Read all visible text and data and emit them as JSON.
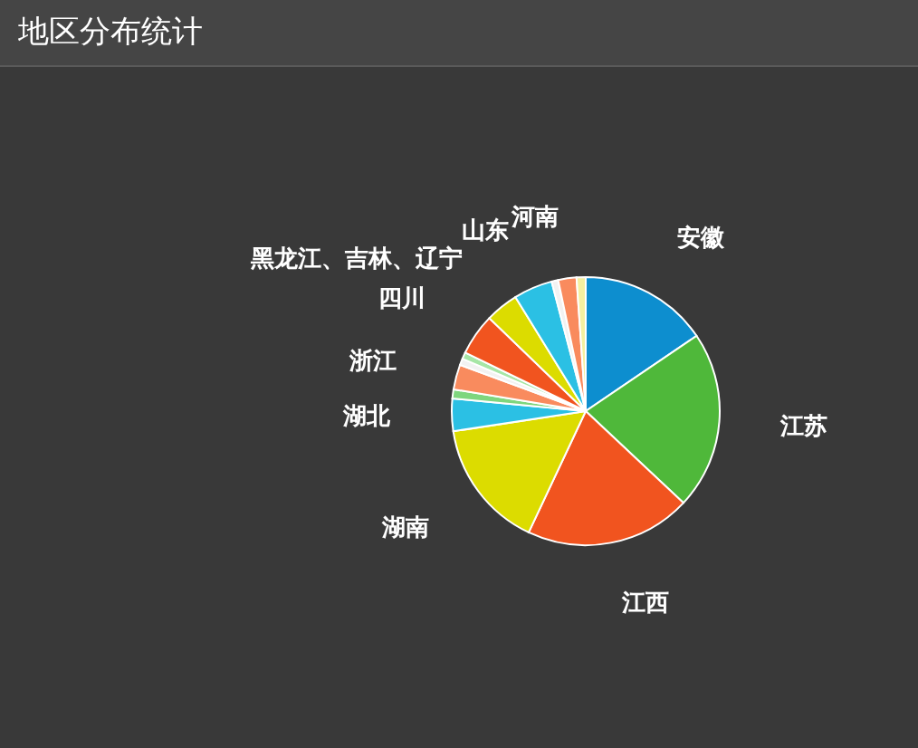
{
  "chart_data": {
    "type": "pie",
    "title": "地区分布统计",
    "categories": [
      "安徽",
      "江苏",
      "江西",
      "湖南",
      "湖北",
      null,
      "浙江",
      null,
      null,
      "四川",
      "黑龙江、吉林、辽宁",
      "山东",
      null,
      "河南",
      null
    ],
    "values": [
      15.5,
      21.5,
      20,
      15.6,
      3.9,
      1.1,
      3.0,
      0.8,
      0.8,
      5,
      4,
      4.7,
      0.8,
      2.2,
      1.1
    ],
    "colors": [
      "#0d8ecf",
      "#4fb83a",
      "#f1541f",
      "#dcdc00",
      "#2bc0e4",
      "#7ed67e",
      "#f98b5e",
      "#f2f2f2",
      "#a6e6a6",
      "#f1541f",
      "#dcdc00",
      "#2bc0e4",
      "#f2f2f2",
      "#f98b5e",
      "#f5f0a0"
    ]
  }
}
